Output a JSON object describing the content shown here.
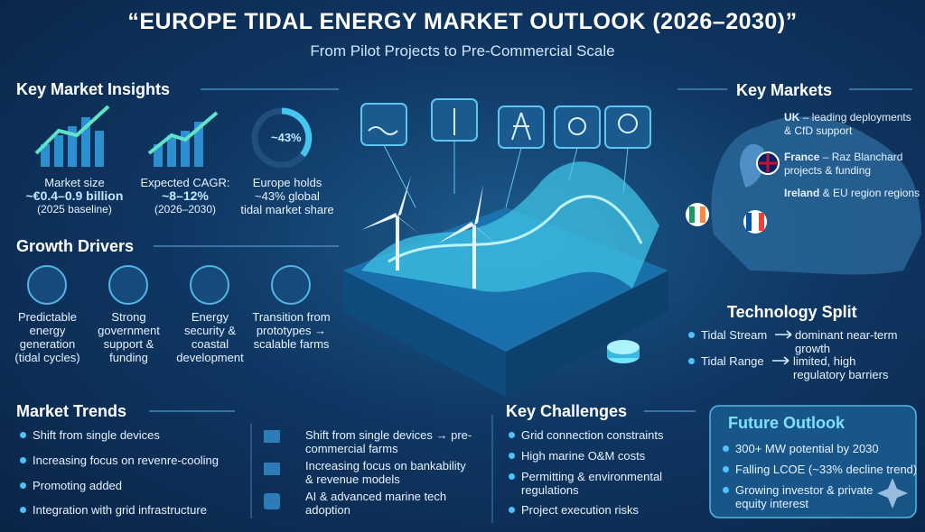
{
  "header": {
    "title": "“EUROPE TIDAL ENERGY MARKET OUTLOOK (2026–2030)”",
    "subtitle": "From Pilot Projects to Pre-Commercial Scale"
  },
  "insights": {
    "title": "Key Market Insights",
    "items": [
      {
        "label": "Market size",
        "value": "~€0.4–0.9 billion",
        "note": "(2025 baseline)"
      },
      {
        "label": "Expected CAGR:",
        "value": "~8–12%",
        "note": "(2026–2030)"
      },
      {
        "badge": "~43%",
        "label": "Europe holds",
        "value": "~43% global",
        "note": "tidal market share"
      }
    ]
  },
  "drivers": {
    "title": "Growth Drivers",
    "items": [
      "Predictable energy generation (tidal cycles)",
      "Strong government support & funding",
      "Energy security & coastal development",
      "Transition from prototypes → scalable farms"
    ]
  },
  "trends": {
    "title": "Market Trends",
    "left": [
      "Shift from single devices",
      "Increasing focus on revenre-cooling",
      "Promoting added",
      "Integration with grid infrastructure"
    ],
    "right": [
      "Shift from single devices → pre-commercial farms",
      "Increasing focus on bankability & revenue models",
      "AI & advanced marine tech adoption"
    ]
  },
  "challenges": {
    "title": "Key Challenges",
    "items": [
      "Grid connection constraints",
      "High marine O&M costs",
      "Permitting & environmental regulations",
      "Project execution risks"
    ]
  },
  "markets": {
    "title": "Key Markets",
    "items": [
      {
        "country": "UK",
        "text": "– leading deployments & CfD support"
      },
      {
        "country": "France",
        "text": "– Raz Blanchard projects & funding"
      },
      {
        "country": "Ireland",
        "text": "& EU region regions"
      }
    ]
  },
  "technology": {
    "title": "Technology Split",
    "rows": [
      {
        "name": "Tidal Stream",
        "desc": "dominant near-term growth"
      },
      {
        "name": "Tidal Range",
        "desc": "limited, high regulatory barriers"
      }
    ]
  },
  "outlook": {
    "title": "Future Outlook",
    "items": [
      "300+ MW potential by 2030",
      "Falling LCOE (~33% decline trend)",
      "Growing investor & private equity interest"
    ]
  }
}
